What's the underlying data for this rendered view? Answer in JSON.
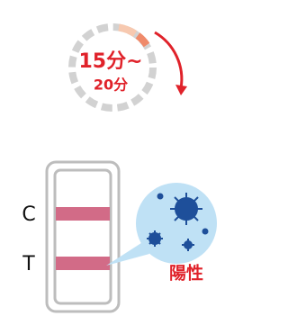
{
  "timer": {
    "line1": "15分~",
    "line2": "20分"
  },
  "strip": {
    "labels": [
      "C",
      "T"
    ]
  },
  "result": "陽性"
}
